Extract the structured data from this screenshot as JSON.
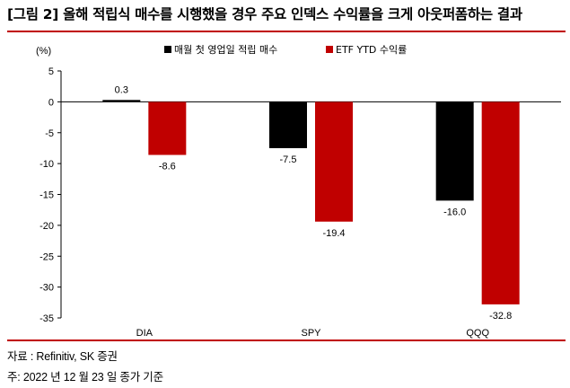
{
  "title": "[그림 2] 올해 적립식 매수를 시행했을 경우 주요 인덱스 수익률을 크게 아웃퍼폼하는 결과",
  "source": "자료 : Refinitiv, SK 증권",
  "note": "주: 2022 년 12 월 23 일 종가 기준",
  "colors": {
    "rule": "#c00000",
    "series1": "#000000",
    "series2": "#c00000"
  },
  "chart_data": {
    "type": "bar",
    "unit": "(%)",
    "categories": [
      "DIA",
      "SPY",
      "QQQ"
    ],
    "series": [
      {
        "name": "매월 첫 영업일 적립 매수",
        "values": [
          0.3,
          -7.5,
          -16.0
        ],
        "labels": [
          "0.3",
          "-7.5",
          "-16.0"
        ]
      },
      {
        "name": "ETF YTD 수익률",
        "values": [
          -8.6,
          -19.4,
          -32.8
        ],
        "labels": [
          "-8.6",
          "-19.4",
          "-32.8"
        ]
      }
    ],
    "ylim": [
      -35,
      5
    ],
    "yticks": [
      5,
      0,
      -5,
      -10,
      -15,
      -20,
      -25,
      -30,
      -35
    ],
    "legend_position": "top-center",
    "grid": false
  }
}
